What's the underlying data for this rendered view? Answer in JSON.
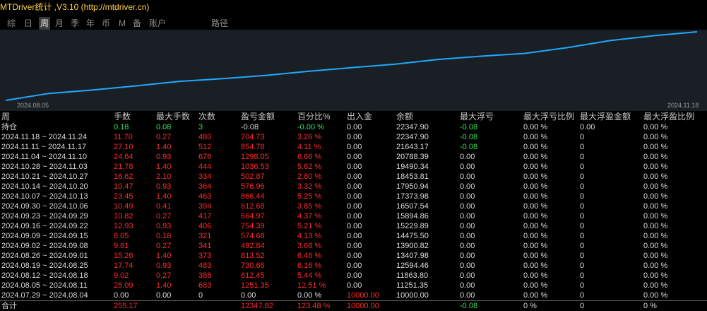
{
  "app": {
    "title": "MTDriver统计 ,V3.10 (http://mtdriver.cn)"
  },
  "tabs": [
    {
      "label": "综"
    },
    {
      "label": "日"
    },
    {
      "label": "周",
      "active": true
    },
    {
      "label": "月"
    },
    {
      "label": "季"
    },
    {
      "label": "年"
    },
    {
      "label": "币"
    },
    {
      "label": "M"
    },
    {
      "label": "备"
    },
    {
      "label": "账户"
    },
    {
      "label": "路径"
    }
  ],
  "chart": {
    "start_label": "2024.08.05",
    "end_label": "2024.11.18",
    "line_color": "#1ea8ff",
    "values": [
      10000.0,
      11251.35,
      11863.8,
      12594.46,
      13407.98,
      13900.82,
      14475.5,
      15229.89,
      15894.86,
      16507.54,
      17373.98,
      17950.94,
      18453.81,
      19490.34,
      20788.39,
      21643.17,
      22347.9
    ]
  },
  "table": {
    "headers": [
      "周",
      "手数",
      "最大手数",
      "次数",
      "盈亏金额",
      "百分比%",
      "出入金",
      "余额",
      "最大浮亏",
      "最大浮亏比例",
      "最大浮盈金额",
      "最大浮盈比例"
    ],
    "holding": [
      "持仓",
      "0.18",
      "0.08",
      "3",
      "-0.08",
      "-0.00 %",
      "0.00",
      "22347.90",
      "-0.08",
      "0.00 %",
      "0.00",
      "0.00 %"
    ],
    "rows": [
      [
        "2024.11.18 ~ 2024.11.24",
        "11.70",
        "0.27",
        "480",
        "704.73",
        "3.26 %",
        "0.00",
        "22347.90",
        "-0.08",
        "0.00 %",
        "0",
        "0.00 %"
      ],
      [
        "2024.11.11 ~ 2024.11.17",
        "27.10",
        "1.40",
        "512",
        "854.78",
        "4.11 %",
        "0.00",
        "21643.17",
        "-0.08",
        "0.00 %",
        "0",
        "0.00 %"
      ],
      [
        "2024.11.04 ~ 2024.11.10",
        "24.64",
        "0.93",
        "676",
        "1298.05",
        "6.66 %",
        "0.00",
        "20788.39",
        "0.00",
        "0.00 %",
        "0",
        "0.00 %"
      ],
      [
        "2024.10.28 ~ 2024.11.03",
        "21.78",
        "1.40",
        "444",
        "1036.53",
        "5.62 %",
        "0.00",
        "19490.34",
        "0.00",
        "0.00 %",
        "0",
        "0.00 %"
      ],
      [
        "2024.10.21 ~ 2024.10.27",
        "16.62",
        "2.10",
        "334",
        "502.87",
        "2.80 %",
        "0.00",
        "18453.81",
        "0.00",
        "0.00 %",
        "0",
        "0.00 %"
      ],
      [
        "2024.10.14 ~ 2024.10.20",
        "10.47",
        "0.93",
        "364",
        "576.96",
        "3.32 %",
        "0.00",
        "17950.94",
        "0.00",
        "0.00 %",
        "0",
        "0.00 %"
      ],
      [
        "2024.10.07 ~ 2024.10.13",
        "23.45",
        "1.40",
        "463",
        "866.44",
        "5.25 %",
        "0.00",
        "17373.98",
        "0.00",
        "0.00 %",
        "0",
        "0.00 %"
      ],
      [
        "2024.09.30 ~ 2024.10.06",
        "10.49",
        "0.41",
        "394",
        "612.68",
        "3.85 %",
        "0.00",
        "16507.54",
        "0.00",
        "0.00 %",
        "0",
        "0.00 %"
      ],
      [
        "2024.09.23 ~ 2024.09.29",
        "10.82",
        "0.27",
        "417",
        "664.97",
        "4.37 %",
        "0.00",
        "15894.86",
        "0.00",
        "0.00 %",
        "0",
        "0.00 %"
      ],
      [
        "2024.09.16 ~ 2024.09.22",
        "12.93",
        "0.93",
        "406",
        "754.39",
        "5.21 %",
        "0.00",
        "15229.89",
        "0.00",
        "0.00 %",
        "0",
        "0.00 %"
      ],
      [
        "2024.09.09 ~ 2024.09.15",
        "8.05",
        "0.18",
        "321",
        "574.68",
        "4.13 %",
        "0.00",
        "14475.50",
        "0.00",
        "0.00 %",
        "0",
        "0.00 %"
      ],
      [
        "2024.09.02 ~ 2024.09.08",
        "9.81",
        "0.27",
        "341",
        "492.84",
        "3.68 %",
        "0.00",
        "13900.82",
        "0.00",
        "0.00 %",
        "0",
        "0.00 %"
      ],
      [
        "2024.08.26 ~ 2024.09.01",
        "15.26",
        "1.40",
        "373",
        "813.52",
        "6.46 %",
        "0.00",
        "13407.98",
        "0.00",
        "0.00 %",
        "0",
        "0.00 %"
      ],
      [
        "2024.08.19 ~ 2024.08.25",
        "17.74",
        "0.93",
        "483",
        "730.66",
        "6.16 %",
        "0.00",
        "12594.46",
        "0.00",
        "0.00 %",
        "0",
        "0.00 %"
      ],
      [
        "2024.08.12 ~ 2024.08.18",
        "9.02",
        "0.27",
        "388",
        "612.45",
        "5.44 %",
        "0.00",
        "11863.80",
        "0.00",
        "0.00 %",
        "0",
        "0.00 %"
      ],
      [
        "2024.08.05 ~ 2024.08.11",
        "25.09",
        "1.40",
        "683",
        "1251.35",
        "12.51 %",
        "0.00",
        "11251.35",
        "0.00",
        "0.00 %",
        "0",
        "0.00 %"
      ],
      [
        "2024.07.29 ~ 2024.08.04",
        "0.00",
        "0.00",
        "0",
        "0.00",
        "0.00 %",
        "10000.00",
        "10000.00",
        "0.00",
        "0.00 %",
        "0",
        "0.00 %"
      ]
    ],
    "total": [
      "合计",
      "255.17",
      "",
      "",
      "12347.82",
      "123.48 %",
      "10000.00",
      "",
      "-0.08",
      "0 %",
      "0",
      "0 %"
    ]
  },
  "colors": {
    "profit_red": "#ff2a2a",
    "gain_green": "#2fe35a",
    "title_yellow": "#ffd24a",
    "chart_bg": "#1a1f26"
  }
}
